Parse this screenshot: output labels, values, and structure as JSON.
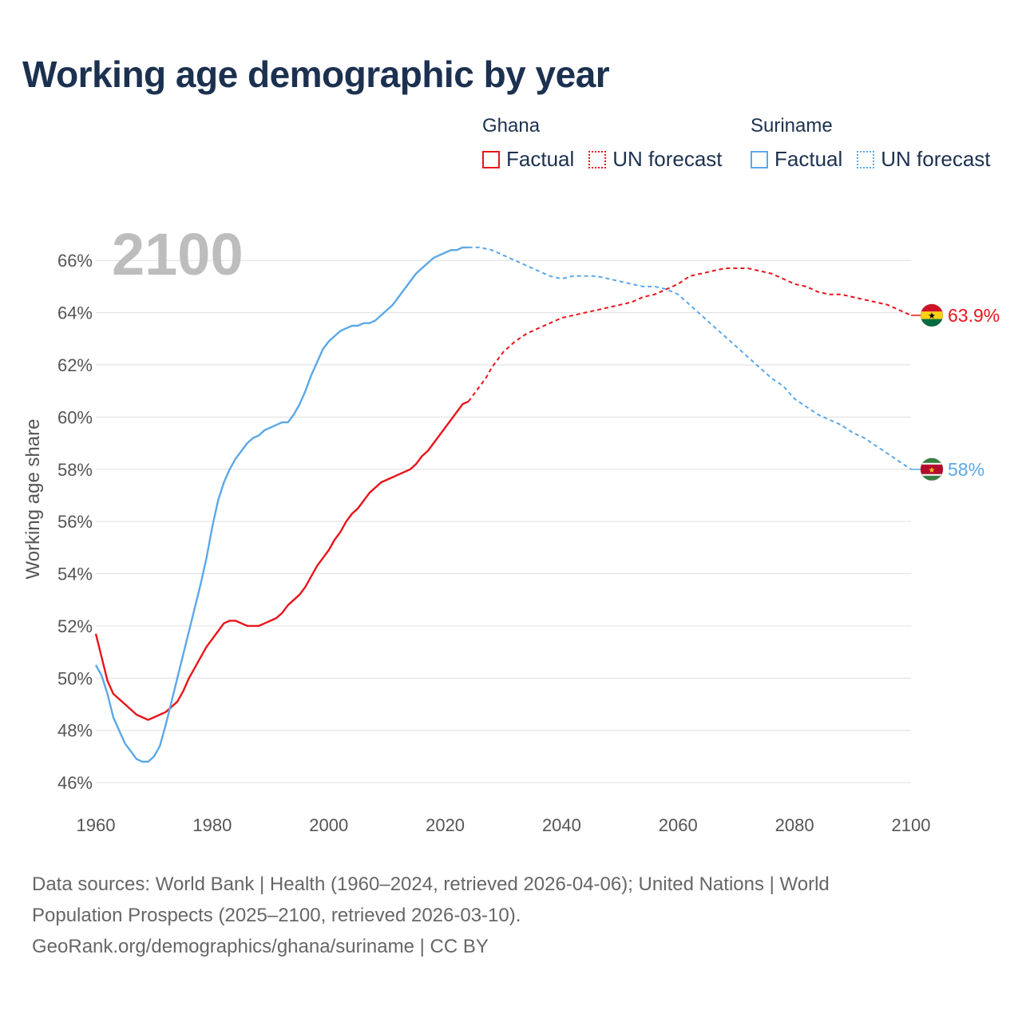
{
  "title": "Working age demographic by year",
  "year_display": "2100",
  "legend": {
    "groups": [
      {
        "country": "Ghana",
        "factual_label": "Factual",
        "forecast_label": "UN forecast",
        "color": "#e8151b"
      },
      {
        "country": "Suriname",
        "factual_label": "Factual",
        "forecast_label": "UN forecast",
        "color": "#5ca8e8"
      }
    ]
  },
  "footer": {
    "line1": "Data sources: World Bank | Health (1960–2024, retrieved 2026-04-06); United Nations | World",
    "line2": "Population Prospects (2025–2100, retrieved 2026-03-10).",
    "line3": "GeoRank.org/demographics/ghana/suriname | CC BY"
  },
  "chart_data": {
    "type": "line",
    "title": "Working age demographic by year",
    "xlabel": "",
    "ylabel": "Working age share",
    "xlim": [
      1960,
      2100
    ],
    "ylim": [
      45.3,
      67.2
    ],
    "x_ticks": [
      1960,
      1980,
      2000,
      2020,
      2040,
      2060,
      2080,
      2100
    ],
    "x_tick_labels": [
      "1960",
      "1980",
      "2000",
      "2020",
      "2040",
      "2060",
      "2080",
      "2100"
    ],
    "y_ticks": [
      46,
      48,
      50,
      52,
      54,
      56,
      58,
      60,
      62,
      64,
      66
    ],
    "y_tick_labels": [
      "46%",
      "48%",
      "50%",
      "52%",
      "54%",
      "56%",
      "58%",
      "60%",
      "62%",
      "64%",
      "66%"
    ],
    "factual_end_year": 2024,
    "series": [
      {
        "name": "Ghana",
        "color": "#e8151b",
        "end_label": "63.9%",
        "points": [
          [
            1960,
            51.7
          ],
          [
            1961,
            50.8
          ],
          [
            1962,
            49.9
          ],
          [
            1963,
            49.4
          ],
          [
            1964,
            49.2
          ],
          [
            1965,
            49.0
          ],
          [
            1966,
            48.8
          ],
          [
            1967,
            48.6
          ],
          [
            1968,
            48.5
          ],
          [
            1969,
            48.4
          ],
          [
            1970,
            48.5
          ],
          [
            1971,
            48.6
          ],
          [
            1972,
            48.7
          ],
          [
            1973,
            48.9
          ],
          [
            1974,
            49.1
          ],
          [
            1975,
            49.5
          ],
          [
            1976,
            50.0
          ],
          [
            1977,
            50.4
          ],
          [
            1978,
            50.8
          ],
          [
            1979,
            51.2
          ],
          [
            1980,
            51.5
          ],
          [
            1981,
            51.8
          ],
          [
            1982,
            52.1
          ],
          [
            1983,
            52.2
          ],
          [
            1984,
            52.2
          ],
          [
            1985,
            52.1
          ],
          [
            1986,
            52.0
          ],
          [
            1987,
            52.0
          ],
          [
            1988,
            52.0
          ],
          [
            1989,
            52.1
          ],
          [
            1990,
            52.2
          ],
          [
            1991,
            52.3
          ],
          [
            1992,
            52.5
          ],
          [
            1993,
            52.8
          ],
          [
            1994,
            53.0
          ],
          [
            1995,
            53.2
          ],
          [
            1996,
            53.5
          ],
          [
            1997,
            53.9
          ],
          [
            1998,
            54.3
          ],
          [
            1999,
            54.6
          ],
          [
            2000,
            54.9
          ],
          [
            2001,
            55.3
          ],
          [
            2002,
            55.6
          ],
          [
            2003,
            56.0
          ],
          [
            2004,
            56.3
          ],
          [
            2005,
            56.5
          ],
          [
            2006,
            56.8
          ],
          [
            2007,
            57.1
          ],
          [
            2008,
            57.3
          ],
          [
            2009,
            57.5
          ],
          [
            2010,
            57.6
          ],
          [
            2011,
            57.7
          ],
          [
            2012,
            57.8
          ],
          [
            2013,
            57.9
          ],
          [
            2014,
            58.0
          ],
          [
            2015,
            58.2
          ],
          [
            2016,
            58.5
          ],
          [
            2017,
            58.7
          ],
          [
            2018,
            59.0
          ],
          [
            2019,
            59.3
          ],
          [
            2020,
            59.6
          ],
          [
            2021,
            59.9
          ],
          [
            2022,
            60.2
          ],
          [
            2023,
            60.5
          ],
          [
            2024,
            60.6
          ],
          [
            2025,
            60.9
          ],
          [
            2026,
            61.2
          ],
          [
            2027,
            61.5
          ],
          [
            2028,
            61.9
          ],
          [
            2029,
            62.2
          ],
          [
            2030,
            62.5
          ],
          [
            2032,
            62.9
          ],
          [
            2034,
            63.2
          ],
          [
            2036,
            63.4
          ],
          [
            2038,
            63.6
          ],
          [
            2040,
            63.8
          ],
          [
            2042,
            63.9
          ],
          [
            2044,
            64.0
          ],
          [
            2046,
            64.1
          ],
          [
            2048,
            64.2
          ],
          [
            2050,
            64.3
          ],
          [
            2052,
            64.4
          ],
          [
            2054,
            64.6
          ],
          [
            2056,
            64.7
          ],
          [
            2058,
            64.9
          ],
          [
            2060,
            65.1
          ],
          [
            2062,
            65.4
          ],
          [
            2064,
            65.5
          ],
          [
            2066,
            65.6
          ],
          [
            2068,
            65.7
          ],
          [
            2070,
            65.7
          ],
          [
            2072,
            65.7
          ],
          [
            2074,
            65.6
          ],
          [
            2076,
            65.5
          ],
          [
            2078,
            65.3
          ],
          [
            2080,
            65.1
          ],
          [
            2082,
            65.0
          ],
          [
            2084,
            64.8
          ],
          [
            2086,
            64.7
          ],
          [
            2088,
            64.7
          ],
          [
            2090,
            64.6
          ],
          [
            2092,
            64.5
          ],
          [
            2094,
            64.4
          ],
          [
            2096,
            64.3
          ],
          [
            2098,
            64.1
          ],
          [
            2099,
            64.0
          ],
          [
            2100,
            63.9
          ]
        ]
      },
      {
        "name": "Suriname",
        "color": "#5ca8e8",
        "end_label": "58%",
        "points": [
          [
            1960,
            50.5
          ],
          [
            1961,
            50.1
          ],
          [
            1962,
            49.4
          ],
          [
            1963,
            48.5
          ],
          [
            1964,
            48.0
          ],
          [
            1965,
            47.5
          ],
          [
            1966,
            47.2
          ],
          [
            1967,
            46.9
          ],
          [
            1968,
            46.8
          ],
          [
            1969,
            46.8
          ],
          [
            1970,
            47.0
          ],
          [
            1971,
            47.4
          ],
          [
            1972,
            48.2
          ],
          [
            1973,
            49.1
          ],
          [
            1974,
            50.0
          ],
          [
            1975,
            50.9
          ],
          [
            1976,
            51.8
          ],
          [
            1977,
            52.7
          ],
          [
            1978,
            53.6
          ],
          [
            1979,
            54.6
          ],
          [
            1980,
            55.8
          ],
          [
            1981,
            56.8
          ],
          [
            1982,
            57.5
          ],
          [
            1983,
            58.0
          ],
          [
            1984,
            58.4
          ],
          [
            1985,
            58.7
          ],
          [
            1986,
            59.0
          ],
          [
            1987,
            59.2
          ],
          [
            1988,
            59.3
          ],
          [
            1989,
            59.5
          ],
          [
            1990,
            59.6
          ],
          [
            1991,
            59.7
          ],
          [
            1992,
            59.8
          ],
          [
            1993,
            59.8
          ],
          [
            1994,
            60.1
          ],
          [
            1995,
            60.5
          ],
          [
            1996,
            61.0
          ],
          [
            1997,
            61.6
          ],
          [
            1998,
            62.1
          ],
          [
            1999,
            62.6
          ],
          [
            2000,
            62.9
          ],
          [
            2001,
            63.1
          ],
          [
            2002,
            63.3
          ],
          [
            2003,
            63.4
          ],
          [
            2004,
            63.5
          ],
          [
            2005,
            63.5
          ],
          [
            2006,
            63.6
          ],
          [
            2007,
            63.6
          ],
          [
            2008,
            63.7
          ],
          [
            2009,
            63.9
          ],
          [
            2010,
            64.1
          ],
          [
            2011,
            64.3
          ],
          [
            2012,
            64.6
          ],
          [
            2013,
            64.9
          ],
          [
            2014,
            65.2
          ],
          [
            2015,
            65.5
          ],
          [
            2016,
            65.7
          ],
          [
            2017,
            65.9
          ],
          [
            2018,
            66.1
          ],
          [
            2019,
            66.2
          ],
          [
            2020,
            66.3
          ],
          [
            2021,
            66.4
          ],
          [
            2022,
            66.4
          ],
          [
            2023,
            66.5
          ],
          [
            2024,
            66.5
          ],
          [
            2025,
            66.5
          ],
          [
            2026,
            66.5
          ],
          [
            2028,
            66.4
          ],
          [
            2030,
            66.2
          ],
          [
            2032,
            66.0
          ],
          [
            2034,
            65.8
          ],
          [
            2036,
            65.6
          ],
          [
            2038,
            65.4
          ],
          [
            2040,
            65.3
          ],
          [
            2042,
            65.4
          ],
          [
            2044,
            65.4
          ],
          [
            2046,
            65.4
          ],
          [
            2048,
            65.3
          ],
          [
            2050,
            65.2
          ],
          [
            2052,
            65.1
          ],
          [
            2054,
            65.0
          ],
          [
            2056,
            65.0
          ],
          [
            2058,
            64.9
          ],
          [
            2060,
            64.7
          ],
          [
            2062,
            64.3
          ],
          [
            2064,
            63.9
          ],
          [
            2066,
            63.5
          ],
          [
            2068,
            63.1
          ],
          [
            2070,
            62.7
          ],
          [
            2072,
            62.3
          ],
          [
            2074,
            61.9
          ],
          [
            2076,
            61.5
          ],
          [
            2078,
            61.2
          ],
          [
            2080,
            60.7
          ],
          [
            2082,
            60.4
          ],
          [
            2084,
            60.1
          ],
          [
            2086,
            59.9
          ],
          [
            2088,
            59.7
          ],
          [
            2090,
            59.4
          ],
          [
            2092,
            59.2
          ],
          [
            2094,
            58.9
          ],
          [
            2096,
            58.6
          ],
          [
            2098,
            58.3
          ],
          [
            2100,
            58.0
          ]
        ]
      }
    ]
  }
}
